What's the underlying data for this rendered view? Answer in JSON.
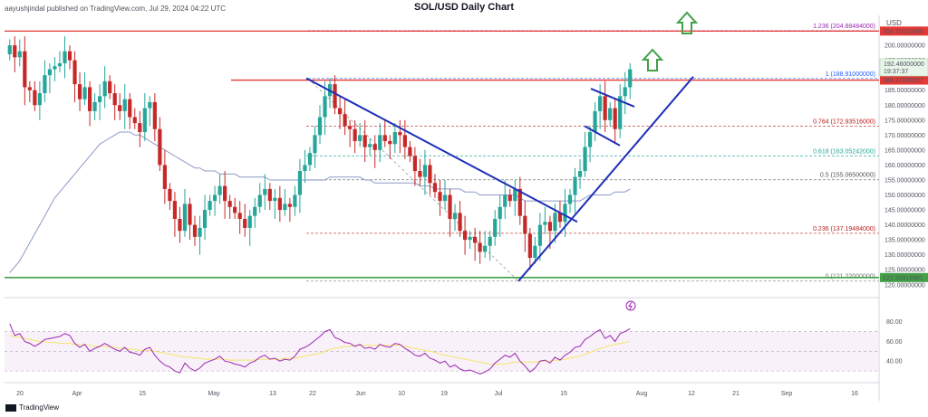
{
  "header": {
    "publisher": "aayushjindal published on TradingView.com, Jul 29, 2024 04:22 UTC",
    "title": "SOL/USD Daily Chart",
    "currency": "USD"
  },
  "footer": {
    "brand": "TradingView"
  },
  "colors": {
    "up": "#26a69a",
    "down": "#ef5350",
    "up_bar": "#26a69a",
    "down_bar": "#c62828",
    "resistance": "#e53935",
    "support": "#43a047",
    "trendline": "#1e2fb8",
    "ma": "#8d99c9",
    "rsi": "#9c27b0",
    "rsi_ma": "#f5e56b",
    "arrow": "#43a047"
  },
  "chart_data": {
    "type": "candlestick",
    "title": "SOL/USD Daily Chart",
    "x_tick_labels": [
      "20",
      "Apr",
      "15",
      "May",
      "13",
      "22",
      "Jun",
      "10",
      "19",
      "Jul",
      "15",
      "Aug",
      "12",
      "21",
      "Sep",
      "16"
    ],
    "y_tick_labels": [
      "120.00000000",
      "125.00000000",
      "130.00000000",
      "135.00000000",
      "140.00000000",
      "145.00000000",
      "150.00000000",
      "155.00000000",
      "160.00000000",
      "165.00000000",
      "170.00000000",
      "175.00000000",
      "180.00000000",
      "185.00000000",
      "190.00000000",
      "195.00000000",
      "200.00000000",
      "205.00000000"
    ],
    "ylim": [
      116,
      210
    ],
    "price_levels": {
      "resistance_1": "204.75623585",
      "resistance_2": "188.37099057",
      "support": "122.39916981",
      "current": "192.46000000",
      "countdown": "19:37:37"
    },
    "fibonacci": [
      {
        "label": "1.236 (204.88484000)",
        "value": 204.88
      },
      {
        "label": "1 (188.91000000)",
        "value": 188.91
      },
      {
        "label": "0.764 (172.93516000)",
        "value": 172.94
      },
      {
        "label": "0.618 (163.05242000)",
        "value": 163.05
      },
      {
        "label": "0.5 (155.06500000)",
        "value": 155.07
      },
      {
        "label": "0.236 (137.19484000)",
        "value": 137.19
      },
      {
        "label": "0 (121.22000000)",
        "value": 121.22
      }
    ],
    "close_series": [
      200,
      196,
      198,
      186,
      185,
      180,
      184,
      190,
      192,
      193,
      194,
      198,
      195,
      187,
      182,
      186,
      178,
      181,
      183,
      188,
      184,
      180,
      178,
      182,
      176,
      174,
      171,
      179,
      181,
      172,
      160,
      152,
      148,
      142,
      138,
      147,
      140,
      136,
      139,
      145,
      148,
      150,
      153,
      148,
      146,
      144,
      142,
      139,
      143,
      146,
      150,
      152,
      148,
      149,
      145,
      147,
      146,
      150,
      158,
      160,
      164,
      170,
      176,
      183,
      187,
      179,
      177,
      173,
      172,
      168,
      170,
      166,
      167,
      165,
      170,
      168,
      167,
      171,
      170,
      166,
      163,
      158,
      156,
      160,
      154,
      151,
      148,
      150,
      142,
      144,
      138,
      135,
      136,
      134,
      131,
      133,
      136,
      142,
      146,
      150,
      148,
      152,
      143,
      137,
      129,
      133,
      140,
      141,
      138,
      144,
      141,
      147,
      150,
      156,
      158,
      166,
      171,
      178,
      183,
      175,
      179,
      172,
      183,
      186,
      192
    ],
    "ma_series": [
      124,
      126,
      128,
      131,
      134,
      137,
      140,
      143,
      146,
      149,
      151,
      153,
      155,
      157,
      159,
      161,
      163,
      165,
      167,
      168,
      169,
      170,
      171,
      171,
      171,
      170,
      170,
      169,
      168,
      167,
      166,
      165,
      164,
      163,
      162,
      161,
      160,
      159,
      159,
      158,
      158,
      158,
      157,
      157,
      157,
      157,
      156,
      156,
      156,
      156,
      156,
      156,
      155,
      155,
      155,
      155,
      155,
      155,
      155,
      155,
      155,
      155,
      155,
      155,
      156,
      156,
      156,
      156,
      156,
      156,
      156,
      155,
      155,
      154,
      154,
      154,
      154,
      154,
      154,
      154,
      154,
      154,
      153,
      153,
      153,
      152,
      152,
      152,
      152,
      152,
      152,
      151,
      151,
      151,
      150,
      150,
      150,
      150,
      150,
      150,
      150,
      150,
      149,
      148,
      148,
      148,
      148,
      148,
      148,
      148,
      148,
      148,
      148,
      148,
      148,
      149,
      150,
      150,
      150,
      150,
      150,
      151,
      151,
      151,
      152
    ],
    "rsi": {
      "y_tick_labels": [
        "80.00",
        "60.00",
        "40.00"
      ],
      "ylim": [
        20,
        88
      ],
      "series": [
        78,
        66,
        68,
        60,
        58,
        55,
        58,
        62,
        63,
        64,
        65,
        68,
        66,
        58,
        54,
        57,
        50,
        53,
        55,
        58,
        55,
        52,
        50,
        54,
        49,
        48,
        46,
        52,
        54,
        46,
        40,
        36,
        34,
        30,
        28,
        38,
        33,
        30,
        33,
        38,
        40,
        42,
        45,
        40,
        39,
        37,
        36,
        34,
        38,
        40,
        44,
        46,
        42,
        43,
        40,
        42,
        41,
        45,
        52,
        54,
        57,
        61,
        65,
        70,
        72,
        64,
        62,
        59,
        58,
        55,
        57,
        53,
        54,
        52,
        57,
        55,
        54,
        58,
        57,
        53,
        50,
        46,
        45,
        48,
        43,
        41,
        38,
        40,
        34,
        36,
        32,
        30,
        31,
        29,
        27,
        29,
        32,
        38,
        42,
        46,
        44,
        48,
        40,
        35,
        29,
        33,
        40,
        41,
        38,
        44,
        41,
        46,
        49,
        54,
        55,
        62,
        65,
        69,
        72,
        63,
        66,
        60,
        68,
        70,
        73
      ],
      "ma_series": [
        66,
        65,
        64,
        63,
        62,
        61,
        60,
        60,
        59,
        59,
        58,
        58,
        58,
        57,
        57,
        56,
        56,
        55,
        55,
        55,
        54,
        54,
        53,
        53,
        52,
        52,
        51,
        51,
        51,
        50,
        49,
        48,
        47,
        46,
        45,
        44,
        44,
        43,
        43,
        42,
        42,
        42,
        42,
        42,
        41,
        41,
        41,
        41,
        41,
        41,
        42,
        42,
        42,
        42,
        42,
        43,
        43,
        43,
        44,
        45,
        46,
        47,
        48,
        50,
        52,
        53,
        54,
        55,
        55,
        56,
        56,
        56,
        56,
        56,
        56,
        56,
        56,
        56,
        56,
        55,
        54,
        53,
        52,
        51,
        50,
        49,
        47,
        46,
        45,
        44,
        43,
        42,
        41,
        40,
        39,
        38,
        37,
        37,
        37,
        37,
        38,
        39,
        39,
        39,
        39,
        39,
        40,
        40,
        40,
        41,
        41,
        42,
        43,
        44,
        45,
        47,
        49,
        51,
        53,
        54,
        56,
        57,
        58,
        59,
        60
      ]
    }
  }
}
